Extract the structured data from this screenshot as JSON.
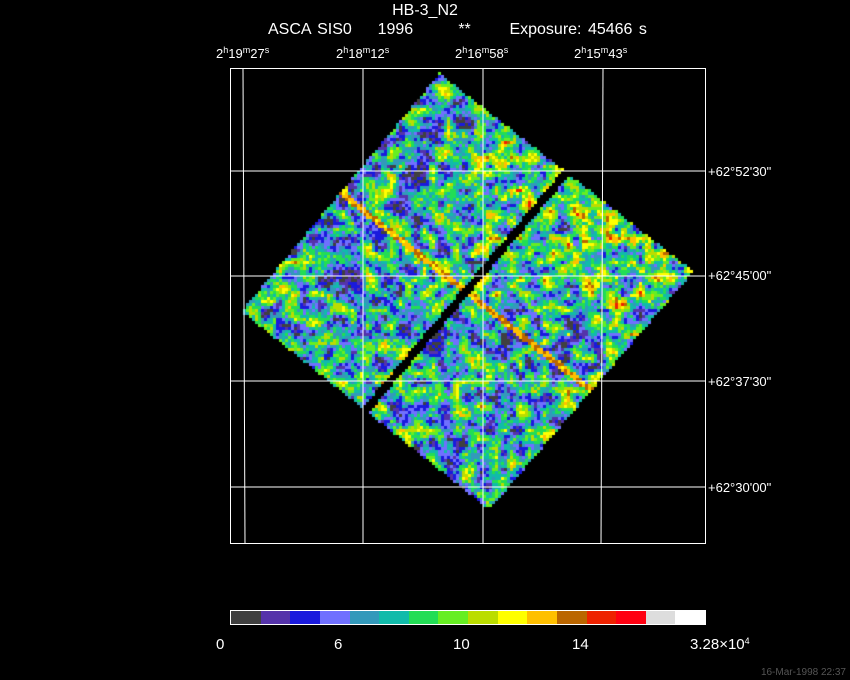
{
  "header": {
    "title": "HB-3_N2",
    "instrument": "ASCA SIS0",
    "year": "1996",
    "marker": "**",
    "exposure": "Exposure: 45466 s"
  },
  "ra_labels": [
    {
      "h": "2",
      "m": "19",
      "s": "27"
    },
    {
      "h": "2",
      "m": "18",
      "s": "12"
    },
    {
      "h": "2",
      "m": "16",
      "s": "58"
    },
    {
      "h": "2",
      "m": "15",
      "s": "43"
    }
  ],
  "dec_labels": [
    "+62°52'30\"",
    "+62°45'00\"",
    "+62°37'30\"",
    "+62°30'00\""
  ],
  "colorbar": {
    "labels": [
      "0",
      "6",
      "10",
      "14"
    ],
    "max_mantissa": "3.28×10",
    "max_exp": "4",
    "colors": [
      "#404040",
      "#5533aa",
      "#1a1add",
      "#7070ff",
      "#3399bb",
      "#11bbaa",
      "#22dd55",
      "#66ee22",
      "#bbdd00",
      "#ffff00",
      "#ffc000",
      "#bb6600",
      "#ee2200",
      "#ff0011",
      "#dddddd",
      "#ffffff"
    ]
  },
  "timestamp": "16-Mar-1998 22:37"
}
